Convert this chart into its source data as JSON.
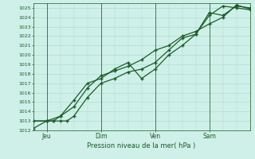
{
  "background_color": "#cff0e8",
  "plot_bg_color": "#cff0e8",
  "grid_color": "#a8d8ce",
  "line_color": "#1a5c28",
  "xlabel": "Pression niveau de la mer( hPa )",
  "ylim": [
    1012,
    1025.5
  ],
  "xlim": [
    0,
    16
  ],
  "yticks": [
    1012,
    1013,
    1014,
    1015,
    1016,
    1017,
    1018,
    1019,
    1020,
    1021,
    1022,
    1023,
    1024,
    1025
  ],
  "day_labels": [
    "Jeu",
    "Dim",
    "Ven",
    "Sam"
  ],
  "day_positions": [
    1,
    5,
    9,
    13
  ],
  "series1_x": [
    0,
    1,
    1.5,
    2,
    2.5,
    3,
    4,
    5,
    6,
    7,
    8,
    9,
    10,
    11,
    12,
    13,
    14,
    15,
    16
  ],
  "series1_y": [
    1012.2,
    1013.0,
    1013.0,
    1013.0,
    1013.0,
    1013.5,
    1015.5,
    1017.0,
    1017.5,
    1018.2,
    1018.5,
    1019.2,
    1020.5,
    1021.8,
    1022.2,
    1024.5,
    1024.2,
    1025.2,
    1025.0
  ],
  "series2_x": [
    0,
    1,
    1.5,
    2,
    3,
    4,
    5,
    6,
    7,
    8,
    9,
    10,
    11,
    12,
    13,
    14,
    15,
    16
  ],
  "series2_y": [
    1013.0,
    1013.0,
    1013.0,
    1013.5,
    1015.2,
    1017.0,
    1017.5,
    1018.5,
    1019.2,
    1017.5,
    1018.5,
    1020.0,
    1021.0,
    1022.2,
    1024.2,
    1025.2,
    1025.0,
    1024.8
  ],
  "series3_x": [
    0,
    1,
    2,
    3,
    4,
    5,
    6,
    7,
    8,
    9,
    10,
    11,
    12,
    13,
    14,
    15,
    16
  ],
  "series3_y": [
    1013.0,
    1013.0,
    1013.5,
    1014.5,
    1016.5,
    1017.8,
    1018.3,
    1018.8,
    1019.5,
    1020.5,
    1021.0,
    1022.0,
    1022.5,
    1023.3,
    1024.0,
    1025.3,
    1024.9
  ]
}
